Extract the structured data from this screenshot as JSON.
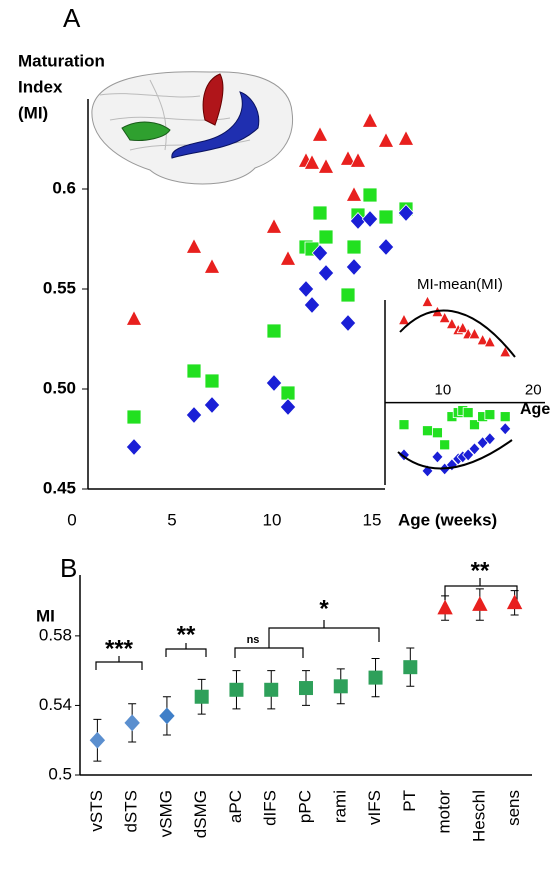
{
  "panels": {
    "a": "A",
    "b": "B"
  },
  "chart_data": [
    {
      "type": "scatter",
      "ylabel_lines": [
        "Maturation",
        "Index",
        "(MI)"
      ],
      "xlabel": "Age (weeks)",
      "xlim": [
        0,
        15.2
      ],
      "ylim": [
        0.45,
        0.645
      ],
      "xticks": [
        0,
        5,
        10,
        15
      ],
      "yticks": [
        0.45,
        {
          "value": 0.5,
          "label": "0.50"
        },
        0.55,
        0.6
      ],
      "x": [
        2.6,
        5.6,
        6.5,
        9.6,
        10.3,
        11.2,
        11.5,
        11.9,
        12.2,
        13.3,
        13.6,
        13.8,
        14.4,
        15.2,
        16.2
      ],
      "series": [
        {
          "marker": "triangle",
          "color": "#e8201e",
          "values": [
            0.535,
            0.571,
            0.561,
            0.581,
            0.565,
            0.614,
            0.613,
            0.627,
            0.611,
            0.615,
            0.597,
            0.614,
            0.634,
            0.624,
            0.625
          ]
        },
        {
          "marker": "square",
          "color": "#22e020",
          "values": [
            0.486,
            0.509,
            0.504,
            0.529,
            0.498,
            0.571,
            0.57,
            0.588,
            0.576,
            0.547,
            0.571,
            0.587,
            0.597,
            0.586,
            0.59
          ]
        },
        {
          "marker": "diamond",
          "color": "#1a1fd6",
          "values": [
            0.471,
            0.487,
            0.492,
            0.503,
            0.491,
            0.55,
            0.542,
            0.568,
            0.558,
            0.533,
            0.561,
            0.584,
            0.585,
            0.571,
            0.588
          ]
        }
      ]
    },
    {
      "type": "scatter",
      "title": "MI-mean(MI)",
      "xlabel": "Age",
      "xlim": [
        3.6,
        21.3
      ],
      "ylim": [
        -0.041,
        0.056
      ],
      "xticks": [
        10,
        20
      ],
      "x": [
        5.7,
        8.3,
        9.4,
        10.2,
        11,
        11.7,
        12.2,
        12.8,
        13.5,
        14.4,
        15.2,
        16.9
      ],
      "series": [
        {
          "marker": "triangle",
          "color": "#e8201e",
          "values": [
            0.041,
            0.05,
            0.045,
            0.042,
            0.039,
            0.036,
            0.037,
            0.034,
            0.034,
            0.031,
            0.03,
            0.025
          ]
        },
        {
          "marker": "square",
          "color": "#22e020",
          "values": [
            -0.011,
            -0.014,
            -0.015,
            -0.021,
            -0.007,
            -0.005,
            -0.004,
            -0.005,
            -0.011,
            -0.007,
            -0.006,
            -0.007
          ]
        },
        {
          "marker": "diamond",
          "color": "#1a1fd6",
          "values": [
            -0.026,
            -0.034,
            -0.027,
            -0.033,
            -0.031,
            -0.028,
            -0.027,
            -0.026,
            -0.023,
            -0.02,
            -0.018,
            -0.013
          ]
        }
      ]
    },
    {
      "type": "errorbar",
      "ylabel": "MI",
      "ylim": [
        0.5,
        0.615
      ],
      "yticks": [
        0.5,
        0.54,
        0.58
      ],
      "categories": [
        "vSTS",
        "dSTS",
        "vSMG",
        "dSMG",
        "aPC",
        "dIFS",
        "pPC",
        "rami",
        "vIFS",
        "PT",
        "motor",
        "Heschl",
        "sens"
      ],
      "values": [
        0.52,
        0.53,
        0.534,
        0.545,
        0.549,
        0.549,
        0.55,
        0.551,
        0.556,
        0.562,
        0.596,
        0.598,
        0.599
      ],
      "errors": [
        0.012,
        0.011,
        0.011,
        0.01,
        0.011,
        0.011,
        0.01,
        0.01,
        0.011,
        0.011,
        0.007,
        0.009,
        0.007
      ],
      "markers": [
        "diamond",
        "diamond",
        "diamond",
        "square",
        "square",
        "square",
        "square",
        "square",
        "square",
        "square",
        "triangle",
        "triangle",
        "triangle"
      ],
      "colors": [
        "#5b8fcf",
        "#5b8fcf",
        "#3f7fc8",
        "#2ea05a",
        "#2ea05a",
        "#2ea05a",
        "#2ea05a",
        "#2ea05a",
        "#2ea05a",
        "#2ea05a",
        "#e8201e",
        "#e8201e",
        "#e8201e"
      ],
      "annotations": [
        "***",
        "**",
        "ns",
        "*",
        "**"
      ]
    }
  ]
}
